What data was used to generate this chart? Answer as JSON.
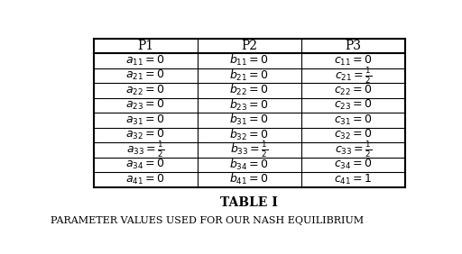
{
  "headers": [
    "P1",
    "P2",
    "P3"
  ],
  "rows": [
    [
      "$a_{11} = 0$",
      "$b_{11} = 0$",
      "$c_{11} = 0$"
    ],
    [
      "$a_{21} = 0$",
      "$b_{21} = 0$",
      "$c_{21} = \\frac{1}{2}$"
    ],
    [
      "$a_{22} = 0$",
      "$b_{22} = 0$",
      "$c_{22} = 0$"
    ],
    [
      "$a_{23} = 0$",
      "$b_{23} = 0$",
      "$c_{23} = 0$"
    ],
    [
      "$a_{31} = 0$",
      "$b_{31} = 0$",
      "$c_{31} = 0$"
    ],
    [
      "$a_{32} = 0$",
      "$b_{32} = 0$",
      "$c_{32} = 0$"
    ],
    [
      "$a_{33} = \\frac{1}{2}$",
      "$b_{33} = \\frac{1}{2}$",
      "$c_{33} = \\frac{1}{2}$"
    ],
    [
      "$a_{34} = 0$",
      "$b_{34} = 0$",
      "$c_{34} = 0$"
    ],
    [
      "$a_{41} = 0$",
      "$b_{41} = 0$",
      "$c_{41} = 1$"
    ]
  ],
  "table_label": "TABLE I",
  "caption": "Parameter values used for our Nash Equilibrium",
  "bg_color": "#ffffff",
  "text_color": "#000000",
  "border_color": "#000000",
  "font_size": 9,
  "caption_font_size": 8
}
